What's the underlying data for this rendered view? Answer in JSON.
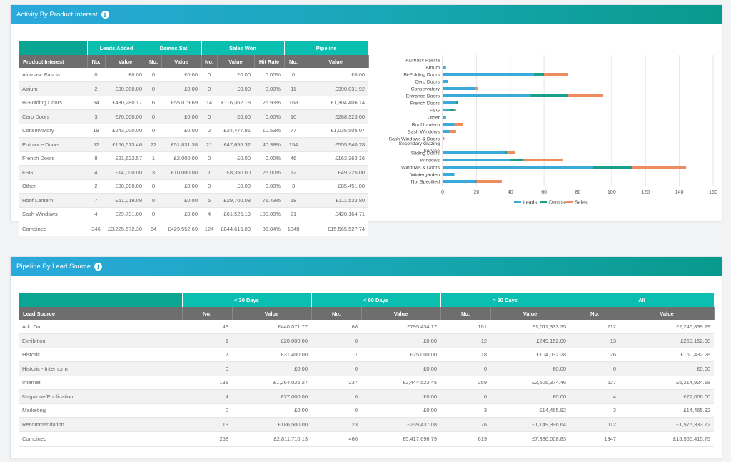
{
  "activity": {
    "title": "Activity By Product Interest",
    "groups": [
      "Leads Added",
      "Demos Sat",
      "Sales Won",
      "Pipeline"
    ],
    "columns": [
      "Product Interest",
      "No.",
      "Value",
      "No.",
      "Value",
      "No.",
      "Value",
      "Hit Rate",
      "No.",
      "Value"
    ],
    "rows": [
      [
        "Alumasc Fascia",
        "0",
        "£0.00",
        "0",
        "£0.00",
        "0",
        "£0.00",
        "0.00%",
        "0",
        "£0.00"
      ],
      [
        "Atrium",
        "2",
        "£30,000.00",
        "0",
        "£0.00",
        "0",
        "£0.00",
        "0.00%",
        "11",
        "£390,831.92"
      ],
      [
        "Bi-Folding Doors",
        "54",
        "£430,280.17",
        "6",
        "£55,079.69",
        "14",
        "£116,362.18",
        "25.93%",
        "168",
        "£1,304,406.14"
      ],
      [
        "Cero Doors",
        "3",
        "£70,000.00",
        "0",
        "£0.00",
        "0",
        "£0.00",
        "0.00%",
        "10",
        "£288,323.60"
      ],
      [
        "Conservatory",
        "19",
        "£243,000.00",
        "0",
        "£0.00",
        "2",
        "£24,477.81",
        "10.53%",
        "77",
        "£1,036,505.07"
      ],
      [
        "Entrance Doors",
        "52",
        "£166,513.46",
        "22",
        "£51,831.38",
        "21",
        "£47,655.32",
        "40.38%",
        "154",
        "£555,940.78"
      ],
      [
        "French Doors",
        "8",
        "£21,622.57",
        "1",
        "£2,000.00",
        "0",
        "£0.00",
        "0.00%",
        "46",
        "£163,363.16"
      ],
      [
        "FSG",
        "4",
        "£14,000.00",
        "3",
        "£10,000.00",
        "1",
        "£8,350.00",
        "25.00%",
        "12",
        "£49,225.00"
      ],
      [
        "Other",
        "2",
        "£30,000.00",
        "0",
        "£0.00",
        "0",
        "£0.00",
        "0.00%",
        "3",
        "£85,451.00"
      ],
      [
        "Roof Lantern",
        "7",
        "£51,019.09",
        "0",
        "£0.00",
        "5",
        "£29,700.08",
        "71.43%",
        "18",
        "£111,533.80"
      ],
      [
        "Sash Windows",
        "4",
        "£29,731.00",
        "0",
        "£0.00",
        "4",
        "£61,526.19",
        "100.00%",
        "21",
        "£420,164.71"
      ]
    ],
    "total": [
      "Combined",
      "346",
      "£3,225,572.30",
      "64",
      "£429,552.69",
      "124",
      "£844,615.00",
      "35.84%",
      "1348",
      "£15,565,527.74"
    ]
  },
  "pipeline": {
    "title": "Pipeline By Lead Source",
    "groups": [
      "< 30 Days",
      "< 90 Days",
      "> 90 Days",
      "All"
    ],
    "columns": [
      "Lead Source",
      "No.",
      "Value",
      "No.",
      "Value",
      "No.",
      "Value",
      "No.",
      "Value"
    ],
    "rows": [
      [
        "Add On",
        "43",
        "£440,071.77",
        "68",
        "£795,434.17",
        "101",
        "£1,011,333.35",
        "212",
        "£2,246,839.29"
      ],
      [
        "Exhibition",
        "1",
        "£20,000.00",
        "0",
        "£0.00",
        "12",
        "£249,152.00",
        "13",
        "£269,152.00"
      ],
      [
        "Historic",
        "7",
        "£31,400.00",
        "1",
        "£25,000.00",
        "18",
        "£104,032.28",
        "26",
        "£160,432.28"
      ],
      [
        "Historic - Internorm",
        "0",
        "£0.00",
        "0",
        "£0.00",
        "0",
        "£0.00",
        "0",
        "£0.00"
      ],
      [
        "Internet",
        "131",
        "£1,264,026.27",
        "237",
        "£2,444,523.45",
        "259",
        "£2,506,374.46",
        "627",
        "£6,214,924.18"
      ],
      [
        "Magazine/Publication",
        "4",
        "£77,000.00",
        "0",
        "£0.00",
        "0",
        "£0.00",
        "4",
        "£77,000.00"
      ],
      [
        "Marketing",
        "0",
        "£0.00",
        "0",
        "£0.00",
        "3",
        "£14,465.92",
        "3",
        "£14,465.92"
      ],
      [
        "Recommendation",
        "13",
        "£186,500.00",
        "23",
        "£239,437.08",
        "76",
        "£1,149,396.64",
        "112",
        "£1,575,333.72"
      ]
    ],
    "total": [
      "Combined",
      "268",
      "£2,811,710.13",
      "460",
      "£5,417,696.79",
      "619",
      "£7,336,008.83",
      "1347",
      "£15,565,415.75"
    ]
  },
  "chart_data": {
    "type": "bar",
    "orientation": "horizontal",
    "stacked": true,
    "categories": [
      "Alumasc Fascia",
      "Atrium",
      "Bi-Folding Doors",
      "Cero Doors",
      "Conservatory",
      "Entrance Doors",
      "French Doors",
      "FSG",
      "Other",
      "Roof Lantern",
      "Sash Windows",
      "Sash Windows & Doors",
      "Secondary Glazing Service",
      "Sliding Doors",
      "Windows",
      "Windows & Doors",
      "Wintergarden",
      "Not Specified"
    ],
    "series": [
      {
        "name": "Leads",
        "color": "#3aaad8",
        "values": [
          0,
          2,
          54,
          3,
          19,
          52,
          8,
          4,
          2,
          7,
          4,
          0,
          0,
          37,
          40,
          89,
          7,
          19
        ]
      },
      {
        "name": "Demos",
        "color": "#18a08a",
        "values": [
          0,
          0,
          6,
          0,
          0,
          22,
          1,
          3,
          0,
          0,
          0,
          0,
          0,
          1,
          8,
          23,
          0,
          1
        ]
      },
      {
        "name": "Sales",
        "color": "#ed8c5e",
        "values": [
          0,
          0,
          14,
          0,
          2,
          21,
          0,
          1,
          0,
          5,
          4,
          1,
          0,
          5,
          23,
          32,
          0,
          15
        ]
      }
    ],
    "xlim": [
      0,
      160
    ],
    "xticks": [
      "0",
      "20",
      "40",
      "60",
      "80",
      "100",
      "120",
      "140",
      "160"
    ],
    "grid": true,
    "legend": "bottom"
  }
}
